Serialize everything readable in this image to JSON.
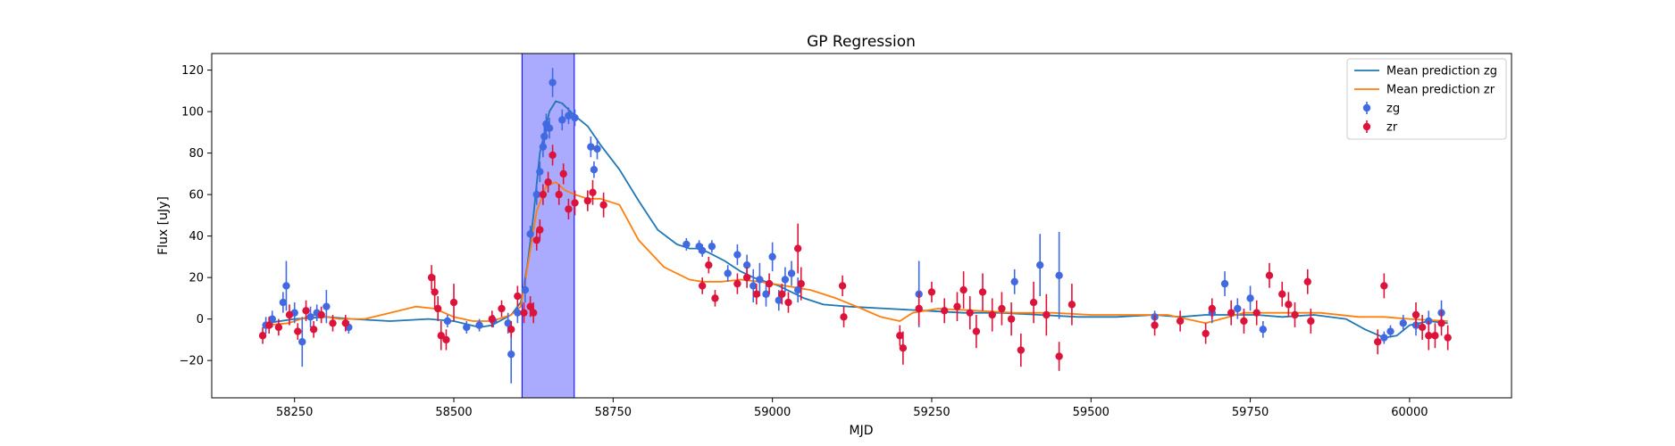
{
  "chart_data": {
    "type": "scatter",
    "title": "GP Regression",
    "xlabel": "MJD",
    "ylabel": "Flux [uJy]",
    "xlim": [
      58120,
      60160
    ],
    "ylim": [
      -38,
      128
    ],
    "x_ticks": [
      58250,
      58500,
      58750,
      59000,
      59250,
      59500,
      59750,
      60000
    ],
    "y_ticks": [
      -20,
      0,
      20,
      40,
      60,
      80,
      100,
      120
    ],
    "legend_position": "upper right",
    "grid": false,
    "shaded_region": {
      "x_start": 58607,
      "x_end": 58689,
      "color": "#aaaaff"
    },
    "series": [
      {
        "name": "Mean prediction zg",
        "kind": "line",
        "color": "#1f77b4",
        "x": [
          58205,
          58250,
          58300,
          58340,
          58400,
          58460,
          58500,
          58540,
          58560,
          58590,
          58605,
          58615,
          58625,
          58635,
          58650,
          58660,
          58670,
          58680,
          58690,
          58710,
          58730,
          58760,
          58790,
          58820,
          58850,
          58870,
          58885,
          58900,
          58925,
          58950,
          58970,
          58990,
          59010,
          59030,
          59050,
          59080,
          59120,
          59180,
          59240,
          59300,
          59360,
          59420,
          59480,
          59540,
          59600,
          59640,
          59680,
          59720,
          59760,
          59800,
          59850,
          59900,
          59930,
          59960,
          59980,
          60000,
          60030,
          60060
        ],
        "y": [
          -2,
          0,
          1,
          0,
          -1,
          0,
          -1,
          -4,
          -3,
          2,
          8,
          25,
          50,
          80,
          100,
          105,
          104,
          101,
          98,
          93,
          84,
          72,
          57,
          43,
          36,
          34,
          34,
          32,
          28,
          23,
          20,
          18,
          16,
          13,
          10,
          7,
          6,
          5,
          4,
          3,
          3,
          2,
          1,
          1,
          2,
          1,
          2,
          2,
          2,
          1,
          2,
          0,
          -5,
          -9,
          -8,
          -3,
          -1,
          -2
        ]
      },
      {
        "name": "Mean prediction zr",
        "kind": "line",
        "color": "#ff7f0e",
        "x": [
          58205,
          58240,
          58280,
          58320,
          58360,
          58400,
          58440,
          58470,
          58500,
          58530,
          58560,
          58590,
          58605,
          58615,
          58630,
          58645,
          58660,
          58675,
          58690,
          58710,
          58730,
          58760,
          58790,
          58830,
          58870,
          58890,
          58920,
          58950,
          58980,
          59020,
          59060,
          59100,
          59140,
          59170,
          59200,
          59220,
          59260,
          59320,
          59380,
          59440,
          59500,
          59560,
          59620,
          59680,
          59740,
          59800,
          59860,
          59920,
          59960,
          60000,
          60060
        ],
        "y": [
          -3,
          -2,
          2,
          0,
          0,
          3,
          6,
          5,
          1,
          -1,
          -1,
          2,
          6,
          24,
          52,
          64,
          66,
          62,
          60,
          58,
          58,
          55,
          38,
          25,
          19,
          18,
          18,
          19,
          18,
          16,
          14,
          10,
          5,
          1,
          -1,
          3,
          5,
          4,
          3,
          3,
          2,
          2,
          2,
          -2,
          3,
          3,
          3,
          1,
          1,
          0,
          -1
        ]
      },
      {
        "name": "zg",
        "kind": "errorbar",
        "color": "#4169e1",
        "x": [
          58205,
          58215,
          58232,
          58237,
          58250,
          58262,
          58275,
          58285,
          58300,
          58335,
          58490,
          58520,
          58540,
          58562,
          58585,
          58590,
          58600,
          58612,
          58620,
          58630,
          58635,
          58640,
          58642,
          58645,
          58650,
          58655,
          58670,
          58680,
          58690,
          58715,
          58720,
          58725,
          58865,
          58885,
          58890,
          58905,
          58930,
          58945,
          58960,
          58970,
          58980,
          58990,
          59000,
          59010,
          59020,
          59030,
          59040,
          59230,
          59380,
          59420,
          59450,
          59600,
          59690,
          59710,
          59730,
          59750,
          59770,
          59960,
          59970,
          59990,
          60010,
          60030,
          60050
        ],
        "y": [
          -3,
          0,
          8,
          16,
          3,
          -11,
          1,
          3,
          6,
          -4,
          -1,
          -4,
          -3,
          -1,
          -2,
          -17,
          3,
          14,
          41,
          60,
          71,
          83,
          88,
          94,
          92,
          114,
          96,
          98,
          97,
          83,
          72,
          82,
          36,
          35,
          33,
          35,
          22,
          31,
          26,
          16,
          19,
          12,
          30,
          9,
          19,
          22,
          14,
          12,
          18,
          26,
          21,
          1,
          3,
          17,
          5,
          10,
          -5,
          -9,
          -6,
          -2,
          -3,
          -1,
          3
        ],
        "err": [
          4,
          4,
          5,
          12,
          5,
          12,
          5,
          4,
          8,
          3,
          3,
          3,
          3,
          3,
          5,
          14,
          5,
          6,
          4,
          5,
          5,
          5,
          5,
          5,
          5,
          7,
          5,
          4,
          4,
          5,
          4,
          5,
          3,
          3,
          3,
          3,
          4,
          5,
          5,
          8,
          8,
          6,
          7,
          5,
          6,
          6,
          6,
          16,
          6,
          15,
          21,
          3,
          5,
          6,
          5,
          6,
          4,
          3,
          3,
          4,
          5,
          5,
          6
        ]
      },
      {
        "name": "zr",
        "kind": "errorbar",
        "color": "#dc143c",
        "x": [
          58200,
          58210,
          58225,
          58242,
          58255,
          58268,
          58280,
          58292,
          58310,
          58330,
          58465,
          58470,
          58475,
          58480,
          58488,
          58500,
          58560,
          58575,
          58590,
          58600,
          58610,
          58620,
          58625,
          58630,
          58635,
          58640,
          58648,
          58655,
          58665,
          58672,
          58680,
          58690,
          58710,
          58718,
          58735,
          58890,
          58900,
          58910,
          58945,
          58960,
          58975,
          58995,
          59015,
          59025,
          59040,
          59045,
          59110,
          59112,
          59200,
          59205,
          59230,
          59250,
          59270,
          59290,
          59300,
          59310,
          59320,
          59330,
          59345,
          59360,
          59375,
          59390,
          59410,
          59430,
          59450,
          59470,
          59600,
          59640,
          59680,
          59690,
          59720,
          59740,
          59760,
          59780,
          59800,
          59810,
          59820,
          59840,
          59845,
          59950,
          59960,
          60010,
          60020,
          60030,
          60040,
          60050,
          60060
        ],
        "y": [
          -8,
          -3,
          -4,
          2,
          -6,
          4,
          -5,
          2,
          -2,
          -2,
          20,
          13,
          5,
          -8,
          -10,
          8,
          0,
          5,
          -5,
          11,
          3,
          6,
          3,
          38,
          43,
          60,
          66,
          79,
          60,
          70,
          53,
          56,
          57,
          61,
          55,
          16,
          26,
          10,
          17,
          20,
          12,
          17,
          12,
          8,
          34,
          17,
          16,
          1,
          -8,
          -14,
          5,
          13,
          4,
          6,
          14,
          3,
          -6,
          13,
          2,
          5,
          0,
          -15,
          8,
          2,
          -18,
          7,
          -3,
          -1,
          -7,
          5,
          3,
          -1,
          3,
          21,
          12,
          7,
          2,
          18,
          -1,
          -11,
          16,
          2,
          -4,
          -8,
          -8,
          -2,
          -9
        ],
        "err": [
          4,
          4,
          4,
          5,
          4,
          5,
          4,
          4,
          4,
          4,
          6,
          8,
          6,
          7,
          5,
          9,
          4,
          4,
          4,
          5,
          5,
          5,
          5,
          5,
          5,
          5,
          5,
          5,
          5,
          5,
          5,
          6,
          5,
          6,
          6,
          4,
          4,
          4,
          5,
          5,
          5,
          5,
          5,
          5,
          12,
          8,
          5,
          5,
          5,
          8,
          8,
          5,
          6,
          7,
          9,
          8,
          8,
          9,
          8,
          8,
          8,
          8,
          10,
          10,
          7,
          10,
          5,
          5,
          5,
          5,
          6,
          6,
          6,
          6,
          6,
          6,
          6,
          6,
          6,
          6,
          6,
          6,
          6,
          7,
          6,
          6,
          6
        ]
      }
    ]
  }
}
